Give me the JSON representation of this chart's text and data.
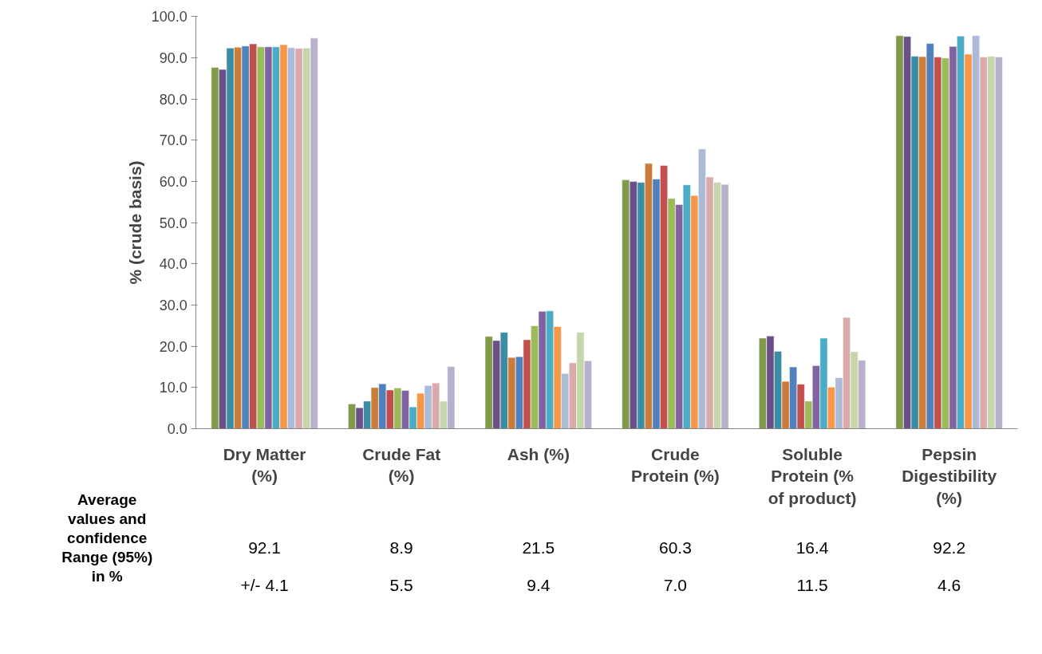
{
  "chart_data": {
    "type": "bar",
    "ylabel": "% (crude basis)",
    "categories": [
      "Dry Matter (%)",
      "Crude Fat (%)",
      "Ash (%)",
      "Crude Protein (%)",
      "Soluble Protein (% of product)",
      "Pepsin Digestibility (%)"
    ],
    "ylim": [
      0,
      100
    ],
    "yticks": [
      {
        "value": 0,
        "label": "0.0"
      },
      {
        "value": 10,
        "label": "10.0"
      },
      {
        "value": 20,
        "label": "20.0"
      },
      {
        "value": 30,
        "label": "30.0"
      },
      {
        "value": 40,
        "label": "40.0"
      },
      {
        "value": 50,
        "label": "50.0"
      },
      {
        "value": 60,
        "label": "60.0"
      },
      {
        "value": 70,
        "label": "70.0"
      },
      {
        "value": 80,
        "label": "80.0"
      },
      {
        "value": 90,
        "label": "90.0"
      },
      {
        "value": 100,
        "label": "100.0"
      }
    ],
    "grid": false,
    "series": [
      {
        "color": "#7f9a48",
        "values": [
          87.7,
          6.0,
          22.4,
          60.4,
          22.0,
          95.4
        ]
      },
      {
        "color": "#6a5086",
        "values": [
          87.2,
          5.1,
          21.4,
          60.0,
          22.5,
          95.2
        ]
      },
      {
        "color": "#3c8da3",
        "values": [
          92.4,
          6.7,
          23.4,
          59.8,
          18.8,
          90.4
        ]
      },
      {
        "color": "#cc7b38",
        "values": [
          92.6,
          10.0,
          17.3,
          64.4,
          11.5,
          90.3
        ]
      },
      {
        "color": "#4f81bd",
        "values": [
          92.9,
          10.9,
          17.5,
          60.6,
          15.0,
          93.5
        ]
      },
      {
        "color": "#c0504d",
        "values": [
          93.4,
          9.4,
          21.6,
          63.9,
          10.8,
          90.2
        ]
      },
      {
        "color": "#9bbb59",
        "values": [
          92.7,
          9.9,
          25.0,
          55.9,
          6.7,
          90.0
        ]
      },
      {
        "color": "#8064a2",
        "values": [
          92.7,
          9.3,
          28.5,
          54.4,
          15.3,
          92.8
        ]
      },
      {
        "color": "#4bacc6",
        "values": [
          92.7,
          5.3,
          28.6,
          59.2,
          22.0,
          95.3
        ]
      },
      {
        "color": "#f79646",
        "values": [
          93.2,
          8.6,
          24.8,
          56.6,
          10.1,
          90.9
        ]
      },
      {
        "color": "#aabad7",
        "values": [
          92.5,
          10.5,
          13.4,
          67.9,
          12.4,
          95.4
        ]
      },
      {
        "color": "#d9aaa9",
        "values": [
          92.3,
          11.1,
          16.0,
          61.1,
          27.0,
          90.2
        ]
      },
      {
        "color": "#c6d6ac",
        "values": [
          92.4,
          6.7,
          23.4,
          59.8,
          18.7,
          90.4
        ]
      },
      {
        "color": "#b9b0cb",
        "values": [
          94.8,
          15.1,
          16.5,
          59.3,
          16.6,
          90.2
        ]
      }
    ],
    "annotations": [
      "Average values and confidence Range (95%) in %",
      "92.1",
      "8.9",
      "21.5",
      "60.3",
      "16.4",
      "92.2",
      "+/- 4.1",
      "5.5",
      "9.4",
      "7.0",
      "11.5",
      "4.6"
    ]
  }
}
